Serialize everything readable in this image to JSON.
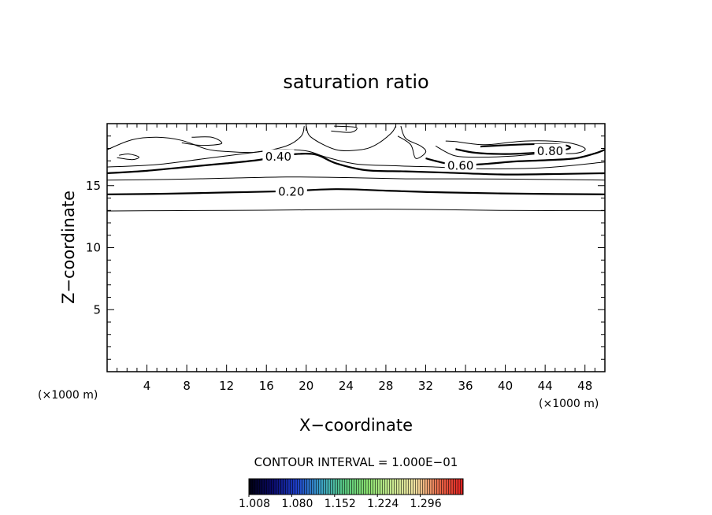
{
  "chart_data": {
    "type": "contour",
    "title": "saturation ratio",
    "xlabel": "X−coordinate",
    "ylabel": "Z−coordinate",
    "x_unit": "(×1000 m)",
    "y_unit": "(×1000 m)",
    "xlim": [
      0,
      50
    ],
    "ylim": [
      0,
      20
    ],
    "x_ticks": [
      4,
      8,
      12,
      16,
      20,
      24,
      28,
      32,
      36,
      40,
      44,
      48
    ],
    "y_ticks": [
      5,
      10,
      15
    ],
    "contour_interval_text": "CONTOUR INTERVAL = 1.000E−01",
    "contour_labels": [
      "0.20",
      "0.40",
      "0.60",
      "0.80"
    ],
    "contours": [
      {
        "level": 0.1,
        "bold": false,
        "points": [
          [
            0,
            12.95
          ],
          [
            5,
            12.98
          ],
          [
            12,
            13.0
          ],
          [
            20,
            13.05
          ],
          [
            26,
            13.1
          ],
          [
            32,
            13.08
          ],
          [
            40,
            13.0
          ],
          [
            50,
            12.98
          ]
        ]
      },
      {
        "level": 0.2,
        "bold": true,
        "label": "0.20",
        "label_at": [
          18.5,
          14.55
        ],
        "points": [
          [
            0,
            14.3
          ],
          [
            6,
            14.35
          ],
          [
            12,
            14.45
          ],
          [
            18,
            14.55
          ],
          [
            23,
            14.72
          ],
          [
            28,
            14.6
          ],
          [
            34,
            14.45
          ],
          [
            42,
            14.35
          ],
          [
            50,
            14.3
          ]
        ]
      },
      {
        "level": 0.3,
        "bold": false,
        "points": [
          [
            0,
            15.45
          ],
          [
            6,
            15.5
          ],
          [
            12,
            15.6
          ],
          [
            18,
            15.7
          ],
          [
            24,
            15.65
          ],
          [
            30,
            15.55
          ],
          [
            36,
            15.55
          ],
          [
            44,
            15.5
          ],
          [
            50,
            15.45
          ]
        ]
      },
      {
        "level": 0.4,
        "bold": true,
        "label": "0.40",
        "label_at": [
          17.2,
          17.35
        ],
        "points": [
          [
            0,
            16.0
          ],
          [
            4,
            16.2
          ],
          [
            8,
            16.5
          ],
          [
            12,
            16.8
          ],
          [
            15,
            17.05
          ],
          [
            17.2,
            17.35
          ],
          [
            19,
            17.55
          ],
          [
            21,
            17.5
          ],
          [
            23,
            16.8
          ],
          [
            26,
            16.25
          ],
          [
            30,
            16.15
          ],
          [
            34,
            16.05
          ],
          [
            40,
            15.9
          ],
          [
            46,
            15.95
          ],
          [
            50,
            16.0
          ]
        ]
      },
      {
        "level": 0.5,
        "bold": false,
        "points": [
          [
            0,
            16.5
          ],
          [
            5,
            16.7
          ],
          [
            10,
            17.2
          ],
          [
            14,
            17.6
          ],
          [
            17,
            17.9
          ],
          [
            20,
            17.8
          ],
          [
            22,
            17.3
          ],
          [
            25,
            16.75
          ],
          [
            29,
            16.6
          ],
          [
            33,
            16.5
          ],
          [
            38,
            16.35
          ],
          [
            44,
            16.45
          ],
          [
            50,
            16.9
          ]
        ]
      },
      {
        "level": 0.6,
        "bold": true,
        "label": "0.60",
        "label_at": [
          35.5,
          16.65
        ],
        "points": [
          [
            32,
            17.2
          ],
          [
            34,
            16.8
          ],
          [
            35.5,
            16.65
          ],
          [
            38,
            16.75
          ],
          [
            41,
            16.95
          ],
          [
            44,
            17.05
          ],
          [
            47,
            17.2
          ],
          [
            49,
            17.6
          ],
          [
            50,
            17.9
          ]
        ]
      },
      {
        "level": 0.7,
        "bold": false,
        "points": [
          [
            33,
            18.2
          ],
          [
            35,
            17.4
          ],
          [
            38,
            17.3
          ],
          [
            41,
            17.4
          ],
          [
            44,
            17.6
          ],
          [
            47,
            17.6
          ],
          [
            48,
            18.0
          ],
          [
            46,
            18.5
          ],
          [
            42,
            18.6
          ],
          [
            38,
            18.3
          ],
          [
            35,
            18.55
          ],
          [
            34,
            18.6
          ]
        ]
      },
      {
        "level": 0.8,
        "bold": true,
        "label": "0.80",
        "label_at": [
          44.5,
          17.8
        ],
        "points": [
          [
            35,
            17.95
          ],
          [
            37,
            17.65
          ],
          [
            40,
            17.55
          ],
          [
            43,
            17.65
          ],
          [
            45.5,
            17.8
          ],
          [
            46.5,
            18.1
          ],
          [
            45,
            18.35
          ],
          [
            41,
            18.3
          ],
          [
            37.5,
            18.15
          ]
        ]
      },
      {
        "level": 0.9,
        "bold": false,
        "points": [
          [
            0,
            17.9
          ],
          [
            2.5,
            18.7
          ],
          [
            5,
            18.9
          ],
          [
            7.5,
            18.65
          ],
          [
            10,
            17.95
          ],
          [
            12,
            17.75
          ],
          [
            15,
            17.7
          ],
          [
            18,
            18.2
          ],
          [
            19.5,
            19.0
          ],
          [
            19.8,
            19.8
          ]
        ]
      },
      {
        "level": 1.0,
        "bold": false,
        "points": [
          [
            1,
            17.25
          ],
          [
            2.5,
            17.1
          ],
          [
            3.2,
            17.3
          ],
          [
            2.2,
            17.55
          ],
          [
            1.2,
            17.45
          ]
        ]
      },
      {
        "level": 1.0,
        "bold": false,
        "points": [
          [
            7.5,
            18.45
          ],
          [
            9.5,
            18.25
          ],
          [
            11.5,
            18.4
          ],
          [
            10.5,
            18.9
          ],
          [
            8.5,
            18.9
          ]
        ]
      },
      {
        "level": 1.0,
        "bold": false,
        "points": [
          [
            20,
            19.8
          ],
          [
            20.5,
            18.9
          ],
          [
            23,
            17.9
          ],
          [
            25.5,
            17.9
          ],
          [
            27,
            18.3
          ],
          [
            28.5,
            19.2
          ],
          [
            29,
            19.8
          ]
        ]
      },
      {
        "level": 1.1,
        "bold": false,
        "points": [
          [
            22.5,
            19.4
          ],
          [
            24.5,
            19.3
          ],
          [
            25,
            19.7
          ],
          [
            22.8,
            19.8
          ]
        ]
      },
      {
        "level": 1.2,
        "bold": false,
        "points": [
          [
            29.5,
            19.8
          ],
          [
            30,
            18.8
          ],
          [
            31.5,
            18.2
          ],
          [
            32,
            17.7
          ],
          [
            31,
            17.2
          ],
          [
            30.5,
            18.3
          ],
          [
            29.2,
            19.0
          ]
        ]
      }
    ],
    "colorbar": {
      "tick_labels": [
        "1.008",
        "1.080",
        "1.152",
        "1.224",
        "1.296"
      ],
      "range": [
        1.008,
        1.368
      ],
      "gradient_colors": [
        "#000010",
        "#0a0a6a",
        "#1e3ec8",
        "#3aa0c8",
        "#58c880",
        "#8ae070",
        "#c8e890",
        "#f0e0a0",
        "#e86848",
        "#e02020"
      ]
    }
  }
}
